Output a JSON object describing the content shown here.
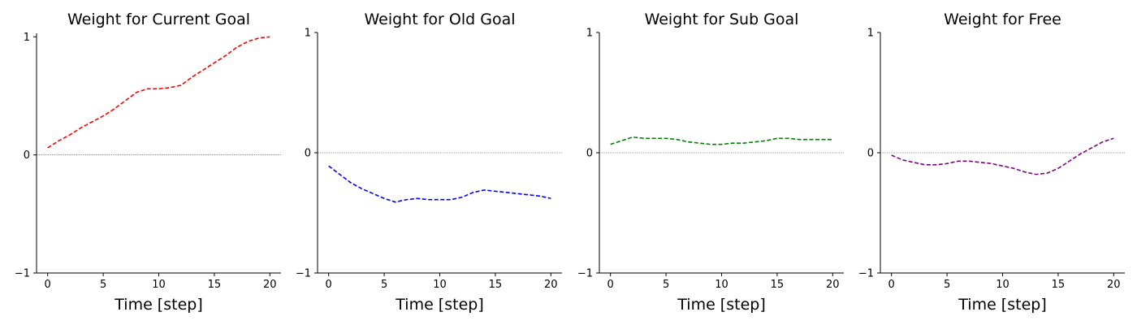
{
  "chart_data": [
    {
      "type": "line",
      "title": "Weight for Current Goal",
      "xlabel": "Time [step]",
      "ylabel": "",
      "xlim": [
        -1,
        21
      ],
      "ylim": [
        -1,
        1.03
      ],
      "xticks": [
        0,
        5,
        10,
        15,
        20
      ],
      "yticks": [
        -1,
        0,
        1
      ],
      "zero_line": true,
      "grid": false,
      "color": "#ff0000",
      "line_style": "dashed",
      "x": [
        0,
        1,
        2,
        3,
        4,
        5,
        6,
        7,
        8,
        9,
        10,
        11,
        12,
        13,
        14,
        15,
        16,
        17,
        18,
        19,
        20
      ],
      "values": [
        0.06,
        0.12,
        0.17,
        0.23,
        0.28,
        0.33,
        0.39,
        0.46,
        0.53,
        0.56,
        0.56,
        0.57,
        0.59,
        0.66,
        0.72,
        0.78,
        0.84,
        0.91,
        0.96,
        0.99,
        1.0
      ]
    },
    {
      "type": "line",
      "title": "Weight for Old Goal",
      "xlabel": "Time [step]",
      "ylabel": "",
      "xlim": [
        -1,
        21
      ],
      "ylim": [
        -1,
        1
      ],
      "xticks": [
        0,
        5,
        10,
        15,
        20
      ],
      "yticks": [
        -1,
        0,
        1
      ],
      "zero_line": true,
      "grid": false,
      "color": "#0000ff",
      "line_style": "dashed",
      "x": [
        0,
        1,
        2,
        3,
        4,
        5,
        6,
        7,
        8,
        9,
        10,
        11,
        12,
        13,
        14,
        15,
        16,
        17,
        18,
        19,
        20
      ],
      "values": [
        -0.11,
        -0.18,
        -0.25,
        -0.3,
        -0.34,
        -0.38,
        -0.41,
        -0.39,
        -0.38,
        -0.39,
        -0.39,
        -0.39,
        -0.37,
        -0.33,
        -0.31,
        -0.32,
        -0.33,
        -0.34,
        -0.35,
        -0.36,
        -0.38
      ]
    },
    {
      "type": "line",
      "title": "Weight for Sub Goal",
      "xlabel": "Time [step]",
      "ylabel": "",
      "xlim": [
        -1,
        21
      ],
      "ylim": [
        -1,
        1
      ],
      "xticks": [
        0,
        5,
        10,
        15,
        20
      ],
      "yticks": [
        -1,
        0,
        1
      ],
      "zero_line": true,
      "grid": false,
      "color": "#008000",
      "line_style": "dashed",
      "x": [
        0,
        1,
        2,
        3,
        4,
        5,
        6,
        7,
        8,
        9,
        10,
        11,
        12,
        13,
        14,
        15,
        16,
        17,
        18,
        19,
        20
      ],
      "values": [
        0.07,
        0.1,
        0.13,
        0.12,
        0.12,
        0.12,
        0.11,
        0.09,
        0.08,
        0.07,
        0.07,
        0.08,
        0.08,
        0.09,
        0.1,
        0.12,
        0.12,
        0.11,
        0.11,
        0.11,
        0.11
      ]
    },
    {
      "type": "line",
      "title": "Weight for Free",
      "xlabel": "Time [step]",
      "ylabel": "",
      "xlim": [
        -1,
        21
      ],
      "ylim": [
        -1,
        1
      ],
      "xticks": [
        0,
        5,
        10,
        15,
        20
      ],
      "yticks": [
        -1,
        0,
        1
      ],
      "zero_line": true,
      "grid": false,
      "color": "#800080",
      "line_style": "dashed",
      "x": [
        0,
        1,
        2,
        3,
        4,
        5,
        6,
        7,
        8,
        9,
        10,
        11,
        12,
        13,
        14,
        15,
        16,
        17,
        18,
        19,
        20
      ],
      "values": [
        -0.02,
        -0.06,
        -0.08,
        -0.1,
        -0.1,
        -0.09,
        -0.07,
        -0.07,
        -0.08,
        -0.09,
        -0.11,
        -0.13,
        -0.16,
        -0.18,
        -0.17,
        -0.13,
        -0.07,
        -0.01,
        0.04,
        0.09,
        0.12
      ]
    }
  ]
}
